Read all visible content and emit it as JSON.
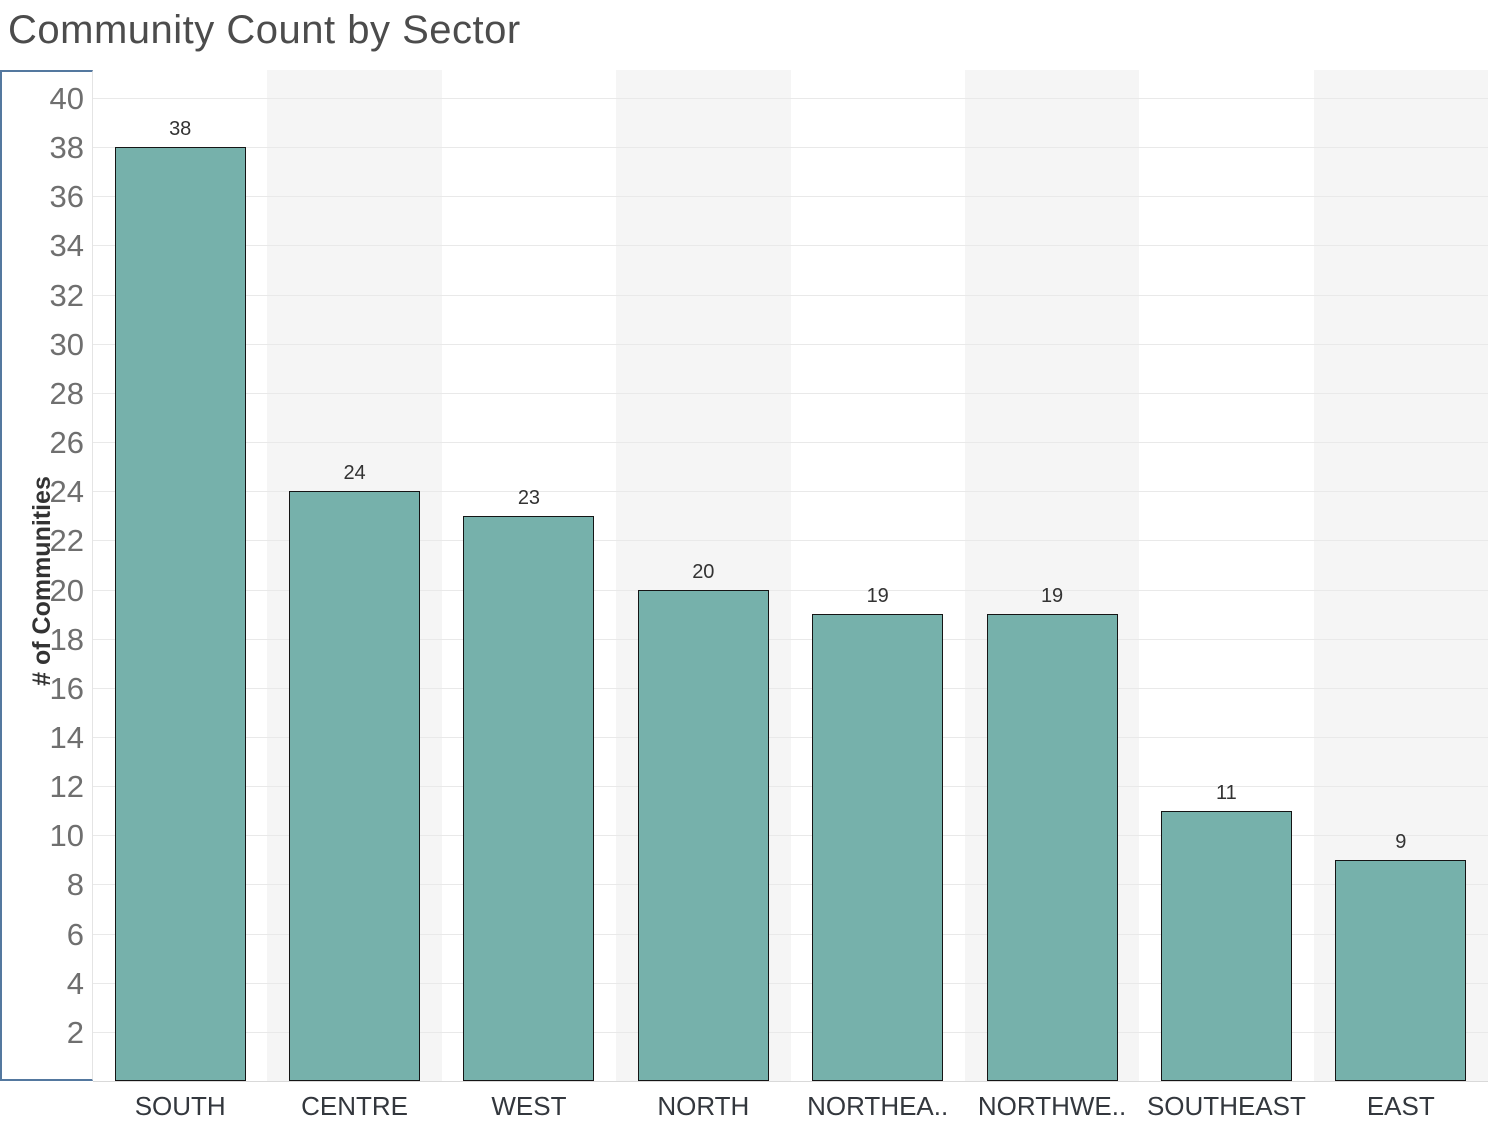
{
  "title": "Community Count by Sector",
  "colors": {
    "bar_fill": "#76b1ab",
    "bar_border": "#151515",
    "band": "#f5f5f5",
    "gridline": "#e9e9e9",
    "axis_selection_border": "#54789f",
    "tick_label": "#6f6f6f",
    "header_label": "#33373d",
    "value_label": "#333333",
    "title_color": "#4c4c4c"
  },
  "chart_data": {
    "type": "bar",
    "title": "Community Count by Sector",
    "ylabel": "# of Communities",
    "xlabel": "",
    "categories": [
      "SOUTH",
      "CENTRE",
      "WEST",
      "NORTH",
      "NORTHEA..",
      "NORTHWE..",
      "SOUTHEAST",
      "EAST"
    ],
    "values": [
      38,
      24,
      23,
      20,
      19,
      19,
      11,
      9
    ],
    "bar_labels": [
      "38",
      "24",
      "23",
      "20",
      "19",
      "19",
      "11",
      "9"
    ],
    "y_ticks": [
      2,
      4,
      6,
      8,
      10,
      12,
      14,
      16,
      18,
      20,
      22,
      24,
      26,
      28,
      30,
      32,
      34,
      36,
      38,
      40
    ],
    "ylim": [
      0,
      41.14
    ],
    "grid": "horizontal-on",
    "legend": "none",
    "banded_columns": [
      1,
      3,
      5,
      7
    ]
  }
}
